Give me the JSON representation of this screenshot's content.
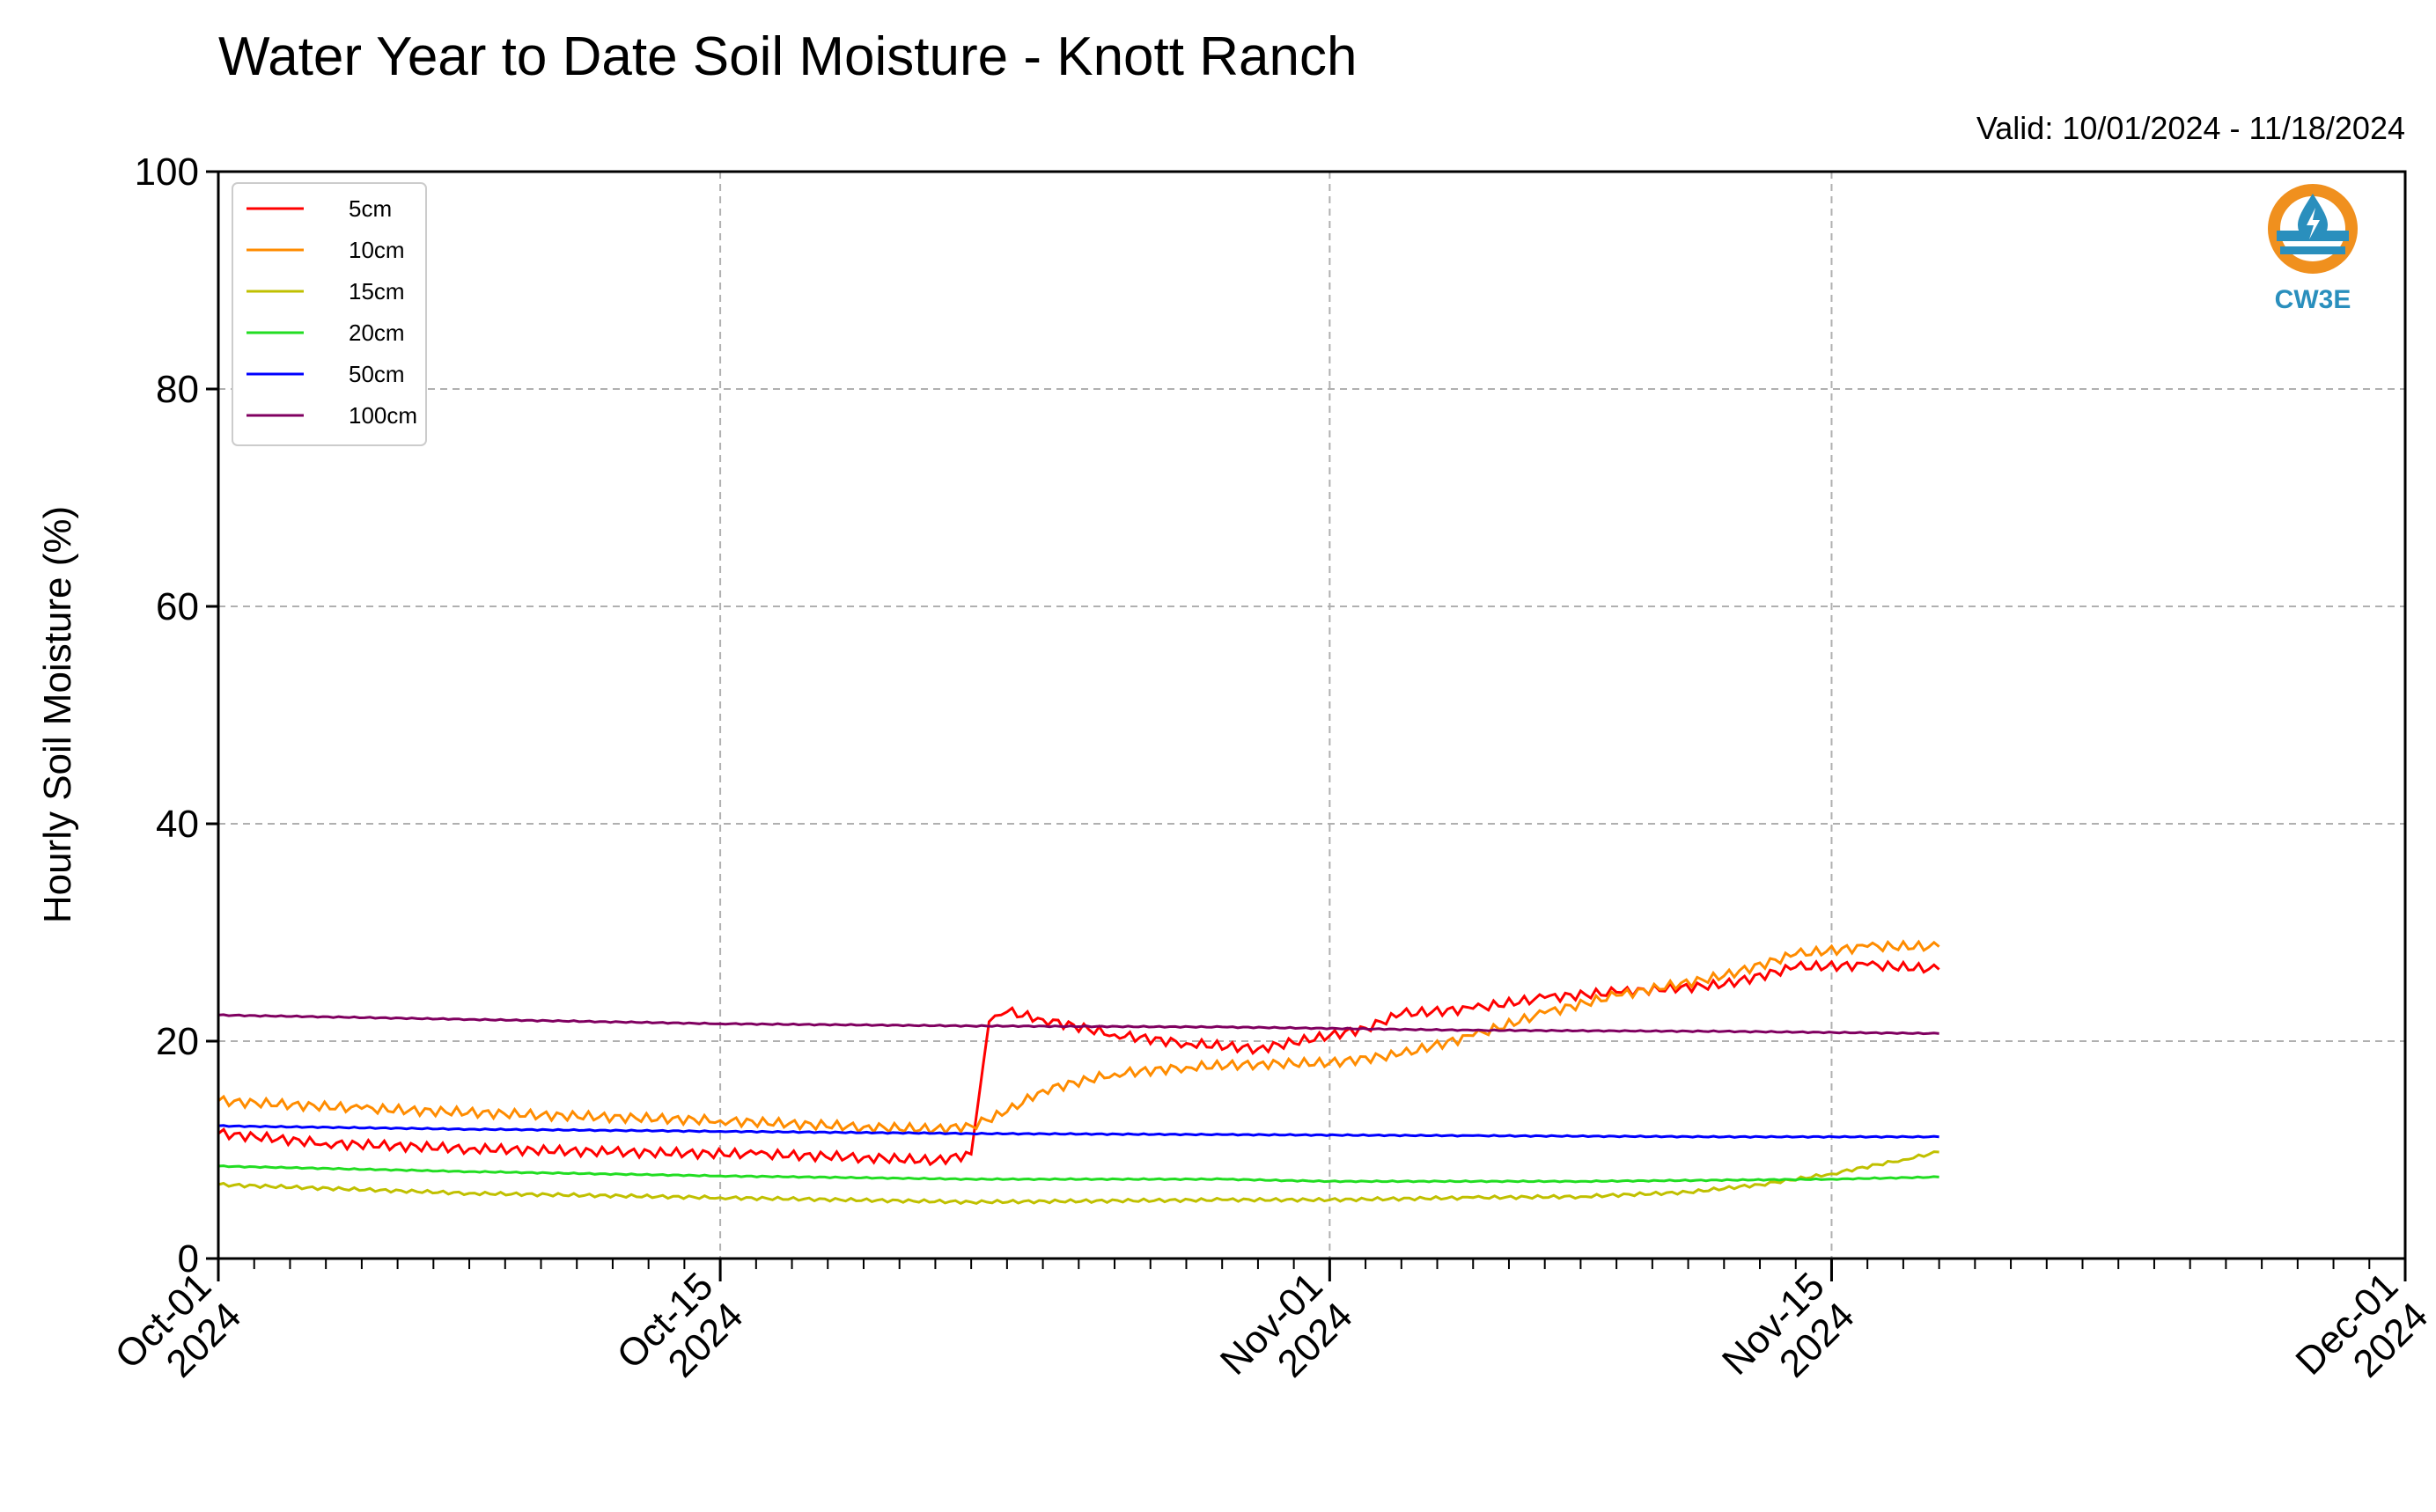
{
  "chart_data": {
    "type": "line",
    "title": "Water Year to Date Soil Moisture - Knott Ranch",
    "subtitle": "Valid: 10/01/2024 - 11/18/2024",
    "ylabel": "Hourly Soil Moisture (%)",
    "xlabel": "",
    "ylim": [
      0,
      100
    ],
    "xlim": [
      "2024-10-01",
      "2024-12-01"
    ],
    "yticks": [
      0,
      20,
      40,
      60,
      80,
      100
    ],
    "xticks": [
      {
        "date": "2024-10-01",
        "line1": "Oct-01",
        "line2": "2024"
      },
      {
        "date": "2024-10-15",
        "line1": "Oct-15",
        "line2": "2024"
      },
      {
        "date": "2024-11-01",
        "line1": "Nov-01",
        "line2": "2024"
      },
      {
        "date": "2024-11-15",
        "line1": "Nov-15",
        "line2": "2024"
      },
      {
        "date": "2024-12-01",
        "line1": "Dec-01",
        "line2": "2024"
      }
    ],
    "grid": true,
    "legend_position": "top-left",
    "series": [
      {
        "name": "5cm",
        "color": "#ff0000",
        "x": [
          "2024-10-01",
          "2024-10-04",
          "2024-10-08",
          "2024-10-12",
          "2024-10-16",
          "2024-10-19",
          "2024-10-21",
          "2024-10-22",
          "2024-10-22T12:00",
          "2024-10-23",
          "2024-10-24",
          "2024-10-26",
          "2024-10-28",
          "2024-10-30",
          "2024-11-01",
          "2024-11-02",
          "2024-11-03",
          "2024-11-05",
          "2024-11-07",
          "2024-11-09",
          "2024-11-12",
          "2024-11-14",
          "2024-11-16",
          "2024-11-18"
        ],
        "y": [
          11.5,
          10.6,
          10.1,
          9.8,
          9.6,
          9.3,
          9.0,
          9.6,
          21.8,
          22.7,
          22.0,
          20.6,
          19.8,
          19.3,
          20.5,
          21.2,
          22.5,
          23.0,
          24.0,
          24.5,
          25.2,
          26.8,
          27.0,
          26.6
        ]
      },
      {
        "name": "10cm",
        "color": "#ff8c00",
        "x": [
          "2024-10-01",
          "2024-10-05",
          "2024-10-10",
          "2024-10-15",
          "2024-10-19",
          "2024-10-21",
          "2024-10-22",
          "2024-10-23",
          "2024-10-24",
          "2024-10-26",
          "2024-10-28",
          "2024-10-30",
          "2024-11-01",
          "2024-11-03",
          "2024-11-05",
          "2024-11-07",
          "2024-11-09",
          "2024-11-12",
          "2024-11-14",
          "2024-11-16",
          "2024-11-18"
        ],
        "y": [
          14.5,
          13.8,
          13.2,
          12.7,
          12.1,
          11.9,
          12.2,
          13.5,
          15.5,
          17.0,
          17.6,
          17.9,
          18.0,
          18.8,
          20.5,
          22.6,
          24.2,
          26.0,
          28.0,
          28.7,
          28.7
        ]
      },
      {
        "name": "15cm",
        "color": "#c0c000",
        "x": [
          "2024-10-01",
          "2024-10-08",
          "2024-10-15",
          "2024-10-22",
          "2024-10-29",
          "2024-11-01",
          "2024-11-05",
          "2024-11-08",
          "2024-11-11",
          "2024-11-13",
          "2024-11-15",
          "2024-11-17",
          "2024-11-18"
        ],
        "y": [
          6.8,
          6.0,
          5.6,
          5.2,
          5.4,
          5.4,
          5.6,
          5.7,
          6.1,
          6.8,
          7.8,
          9.1,
          9.8
        ]
      },
      {
        "name": "20cm",
        "color": "#22dd22",
        "x": [
          "2024-10-01",
          "2024-10-08",
          "2024-10-15",
          "2024-10-22",
          "2024-10-29",
          "2024-11-01",
          "2024-11-08",
          "2024-11-15",
          "2024-11-18"
        ],
        "y": [
          8.5,
          8.0,
          7.6,
          7.3,
          7.3,
          7.1,
          7.1,
          7.3,
          7.5
        ]
      },
      {
        "name": "50cm",
        "color": "#0000ff",
        "x": [
          "2024-10-01",
          "2024-10-08",
          "2024-10-15",
          "2024-10-22",
          "2024-10-29",
          "2024-11-05",
          "2024-11-12",
          "2024-11-18"
        ],
        "y": [
          12.2,
          11.9,
          11.7,
          11.5,
          11.4,
          11.3,
          11.2,
          11.2
        ]
      },
      {
        "name": "100cm",
        "color": "#800060",
        "x": [
          "2024-10-01",
          "2024-10-08",
          "2024-10-15",
          "2024-10-22",
          "2024-10-29",
          "2024-11-05",
          "2024-11-12",
          "2024-11-18"
        ],
        "y": [
          22.4,
          22.0,
          21.6,
          21.4,
          21.3,
          21.0,
          20.9,
          20.7
        ]
      }
    ]
  },
  "logo": {
    "text": "CW3E",
    "ring_color": "#f0901e",
    "accent_color": "#2a8fbd",
    "icon": "water-drop-icon"
  }
}
